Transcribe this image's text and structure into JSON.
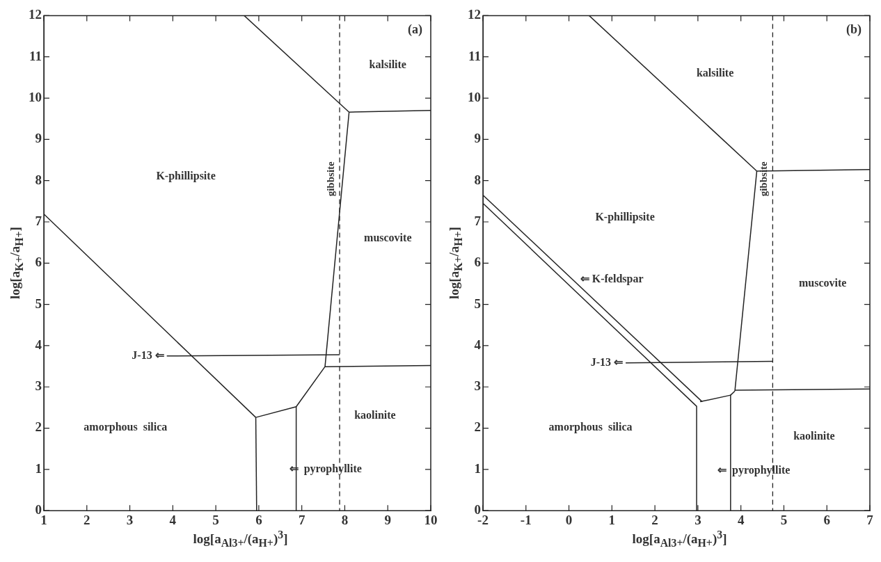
{
  "chart_data": [
    {
      "type": "line",
      "title": "(a)",
      "xlabel": "log[a$_{Al3+}$/(a$_{H+}$)$^{3}$]",
      "ylabel": "log[a$_{K+}$/a$_{H+}$]",
      "xlim": [
        1,
        10
      ],
      "ylim": [
        0,
        12
      ],
      "xticks": [
        1,
        2,
        3,
        4,
        5,
        6,
        7,
        8,
        9,
        10
      ],
      "yticks": [
        0,
        1,
        2,
        3,
        4,
        5,
        6,
        7,
        8,
        9,
        10,
        11,
        12
      ],
      "grid": false,
      "legend": false,
      "series": [
        {
          "color": "#222222",
          "x": [
            1,
            5.93
          ],
          "values": [
            7.19,
            2.26
          ]
        },
        {
          "color": "#222222",
          "x": [
            5.93,
            5.95
          ],
          "values": [
            2.26,
            0
          ]
        },
        {
          "color": "#222222",
          "x": [
            5.93,
            6.87
          ],
          "values": [
            2.26,
            2.52
          ]
        },
        {
          "color": "#222222",
          "x": [
            6.87,
            6.87
          ],
          "values": [
            2.52,
            0
          ]
        },
        {
          "color": "#222222",
          "x": [
            6.87,
            7.54
          ],
          "values": [
            2.52,
            3.49
          ]
        },
        {
          "color": "#222222",
          "x": [
            7.54,
            10
          ],
          "values": [
            3.49,
            3.52
          ]
        },
        {
          "color": "#222222",
          "x": [
            7.54,
            8.1
          ],
          "values": [
            3.49,
            9.66
          ]
        },
        {
          "color": "#222222",
          "x": [
            8.1,
            10
          ],
          "values": [
            9.66,
            9.7
          ]
        },
        {
          "color": "#222222",
          "x": [
            8.1,
            5.66
          ],
          "values": [
            9.66,
            12
          ]
        },
        {
          "color": "#222222",
          "x": [
            3.86,
            7.88
          ],
          "values": [
            3.75,
            3.78
          ]
        }
      ],
      "ref_lines": [
        {
          "axis": "x",
          "value": 7.88,
          "label": "gibbsite",
          "line_style": "dashed",
          "color": "#222222"
        }
      ],
      "annotations": [
        "kalsilite",
        "K-phillipsite",
        "muscovite",
        "kaolinite",
        "amorphous  silica",
        "⇐  pyrophyllite",
        {
          "text": "J-13 ⇐",
          "x": 3.86,
          "y": 3.75
        }
      ]
    },
    {
      "type": "line",
      "title": "(b)",
      "xlabel": "log[a$_{Al3+}$/(a$_{H+}$)$^{3}$]",
      "ylabel": "log[a$_{K+}$/a$_{H+}$]",
      "xlim": [
        -2,
        7
      ],
      "ylim": [
        0,
        12
      ],
      "xticks": [
        -2,
        -1,
        0,
        1,
        2,
        3,
        4,
        5,
        6,
        7
      ],
      "yticks": [
        0,
        1,
        2,
        3,
        4,
        5,
        6,
        7,
        8,
        9,
        10,
        11,
        12
      ],
      "grid": false,
      "legend": false,
      "series": [
        {
          "color": "#222222",
          "x": [
            -2,
            3.1
          ],
          "values": [
            7.65,
            2.64
          ]
        },
        {
          "color": "#222222",
          "x": [
            -2,
            2.97
          ],
          "values": [
            7.45,
            2.53
          ]
        },
        {
          "color": "#222222",
          "x": [
            2.97,
            2.97
          ],
          "values": [
            2.53,
            0
          ]
        },
        {
          "color": "#222222",
          "x": [
            3.05,
            3.76
          ],
          "values": [
            2.64,
            2.8
          ]
        },
        {
          "color": "#222222",
          "x": [
            3.76,
            3.76
          ],
          "values": [
            2.8,
            0
          ]
        },
        {
          "color": "#222222",
          "x": [
            3.76,
            3.86
          ],
          "values": [
            2.8,
            2.9
          ]
        },
        {
          "color": "#222222",
          "x": [
            3.86,
            7
          ],
          "values": [
            2.92,
            2.95
          ]
        },
        {
          "color": "#222222",
          "x": [
            3.86,
            4.37
          ],
          "values": [
            2.9,
            8.23
          ]
        },
        {
          "color": "#222222",
          "x": [
            4.37,
            7
          ],
          "values": [
            8.23,
            8.27
          ]
        },
        {
          "color": "#222222",
          "x": [
            4.37,
            0.47
          ],
          "values": [
            8.23,
            12
          ]
        },
        {
          "color": "#222222",
          "x": [
            1.32,
            4.74
          ],
          "values": [
            3.58,
            3.62
          ]
        }
      ],
      "ref_lines": [
        {
          "axis": "x",
          "value": 4.74,
          "label": "gibbsite",
          "line_style": "dashed",
          "color": "#222222"
        }
      ],
      "annotations": [
        "kalsilite",
        "K-phillipsite",
        "⇐ K-feldspar",
        "muscovite",
        "kaolinite",
        "amorphous  silica",
        "⇐  pyrophyllite",
        {
          "text": "J-13 ⇐",
          "x": 1.32,
          "y": 3.58
        }
      ]
    }
  ]
}
